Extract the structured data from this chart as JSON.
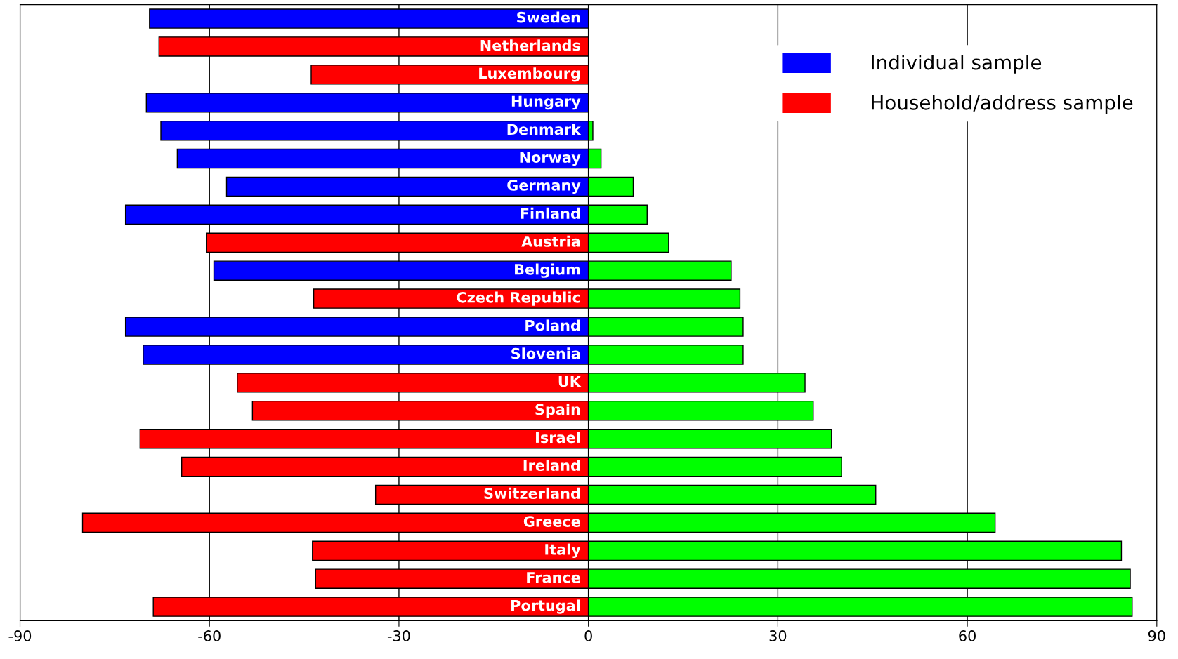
{
  "chart_data": {
    "type": "bar",
    "orientation": "horizontal",
    "stacked": true,
    "categories": [
      "Sweden",
      "Netherlands",
      "Luxembourg",
      "Hungary",
      "Denmark",
      "Norway",
      "Germany",
      "Finland",
      "Austria",
      "Belgium",
      "Czech Republic",
      "Poland",
      "Slovenia",
      "UK",
      "Spain",
      "Israel",
      "Ireland",
      "Switzerland",
      "Greece",
      "Italy",
      "France",
      "Portugal"
    ],
    "series": [
      {
        "name": "Individual sample",
        "color": "#0000ff",
        "values": [
          -69.5,
          null,
          null,
          -70,
          -67.7,
          -65.1,
          -57.3,
          -73.3,
          null,
          -59.3,
          null,
          -73.3,
          -70.5,
          null,
          null,
          null,
          null,
          null,
          null,
          null,
          null,
          null
        ]
      },
      {
        "name": "Household/address sample",
        "color": "#ff0000",
        "values": [
          null,
          -68,
          -43.9,
          null,
          null,
          null,
          null,
          null,
          -60.5,
          null,
          -43.5,
          null,
          null,
          -55.6,
          -53.2,
          -71,
          -64.4,
          -33.7,
          -80.1,
          -43.7,
          -43.2,
          -68.9
        ]
      },
      {
        "color": "#00ff00",
        "values": [
          null,
          null,
          null,
          null,
          0.7,
          2.0,
          7.1,
          9.3,
          12.7,
          22.6,
          24.0,
          24.5,
          24.5,
          34.3,
          35.6,
          38.5,
          40.1,
          45.5,
          64.4,
          84.4,
          85.8,
          86.1
        ]
      }
    ],
    "xlim": [
      -90,
      90
    ],
    "xticks": [
      -90,
      -60,
      -30,
      0,
      30,
      60,
      90
    ],
    "grid": "x",
    "legend": "top right",
    "tick_labels": "x"
  }
}
